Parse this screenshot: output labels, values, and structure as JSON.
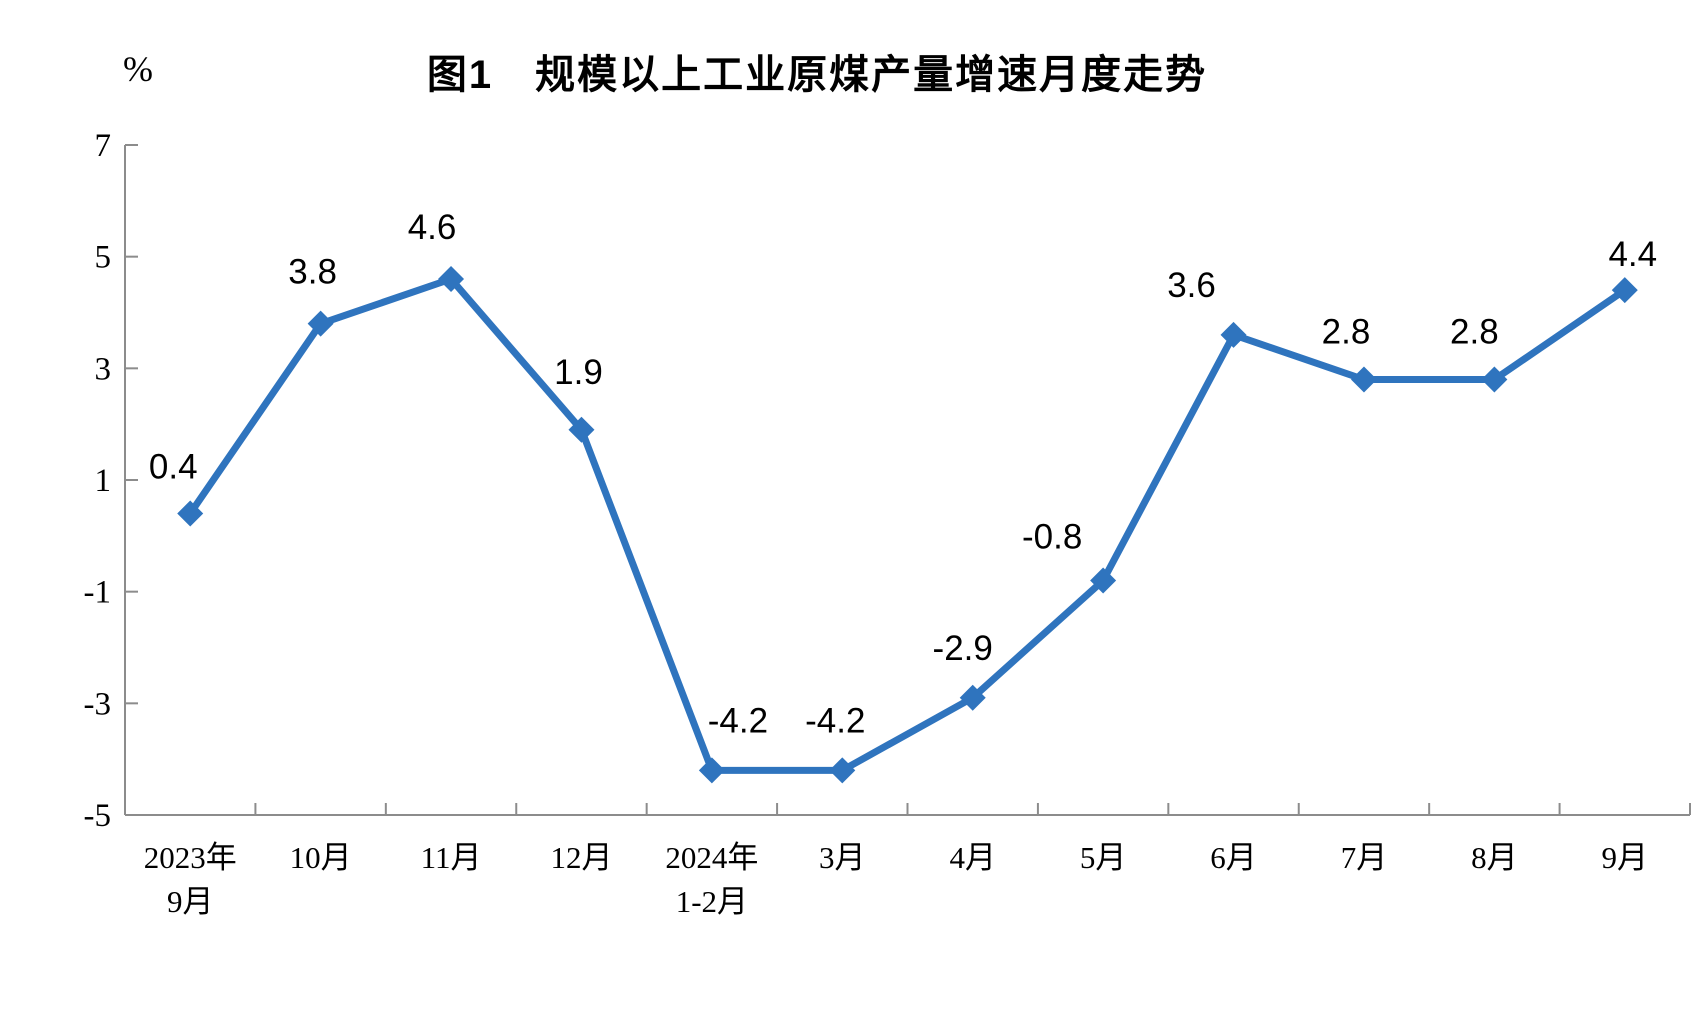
{
  "chart_data": {
    "type": "line",
    "title": "图1　规模以上工业原煤产量增速月度走势",
    "unit_label": "%",
    "categories": [
      [
        "2023年",
        "9月"
      ],
      [
        "10月"
      ],
      [
        "11月"
      ],
      [
        "12月"
      ],
      [
        "2024年",
        "1-2月"
      ],
      [
        "3月"
      ],
      [
        "4月"
      ],
      [
        "5月"
      ],
      [
        "6月"
      ],
      [
        "7月"
      ],
      [
        "8月"
      ],
      [
        "9月"
      ]
    ],
    "values": [
      0.4,
      3.8,
      4.6,
      1.9,
      -4.2,
      -4.2,
      -2.9,
      -0.8,
      3.6,
      2.8,
      2.8,
      4.4
    ],
    "data_labels": [
      "0.4",
      "3.8",
      "4.6",
      "1.9",
      "-4.2",
      "-4.2",
      "-2.9",
      "-0.8",
      "3.6",
      "2.8",
      "2.8",
      "4.4"
    ],
    "y_ticks": [
      7,
      5,
      3,
      1,
      -1,
      -3,
      -5
    ],
    "ylim": [
      -5,
      7
    ],
    "series_color": "#2F74BE",
    "axis_color": "#8C8C8C",
    "label_color": "#000000",
    "grid": false,
    "legend_position": "none",
    "marker_shape": "diamond"
  }
}
